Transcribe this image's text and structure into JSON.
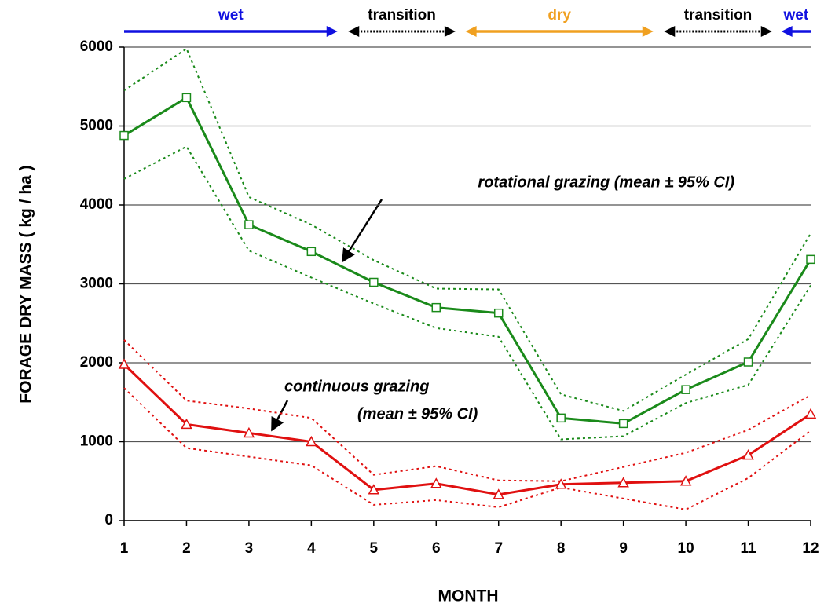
{
  "chart_data": {
    "type": "line",
    "xlabel": "MONTH",
    "ylabel": "FORAGE DRY MASS ( kg / ha )",
    "x": [
      1,
      2,
      3,
      4,
      5,
      6,
      7,
      8,
      9,
      10,
      11,
      12
    ],
    "xlim": [
      1,
      12
    ],
    "xticks": [
      1,
      2,
      3,
      4,
      5,
      6,
      7,
      8,
      9,
      10,
      11,
      12
    ],
    "ylim": [
      0,
      6000
    ],
    "yticks": [
      0,
      1000,
      2000,
      3000,
      4000,
      5000,
      6000
    ],
    "grid": true,
    "series": [
      {
        "color": "#1a8a1a",
        "marker": "square",
        "values": [
          4880,
          5360,
          3750,
          3410,
          3020,
          2700,
          2630,
          1300,
          1230,
          1660,
          2010,
          3310
        ],
        "upper": [
          5450,
          5980,
          4100,
          3750,
          3300,
          2940,
          2930,
          1600,
          1390,
          1850,
          2300,
          3640
        ],
        "lower": [
          4330,
          4740,
          3420,
          3080,
          2750,
          2440,
          2330,
          1030,
          1070,
          1490,
          1720,
          2980
        ]
      },
      {
        "color": "#e01010",
        "marker": "triangle",
        "values": [
          1980,
          1220,
          1110,
          1000,
          390,
          470,
          330,
          460,
          480,
          500,
          830,
          1350
        ],
        "upper": [
          2290,
          1520,
          1420,
          1300,
          580,
          690,
          510,
          500,
          680,
          860,
          1150,
          1590
        ],
        "lower": [
          1680,
          920,
          810,
          700,
          200,
          260,
          170,
          420,
          280,
          140,
          540,
          1140
        ]
      }
    ],
    "seasons": [
      {
        "label": "wet",
        "start": 1,
        "end": 4.42,
        "color": "#1010e0",
        "style": "solid",
        "heads": "end"
      },
      {
        "label": "transition",
        "start": 4.59,
        "end": 6.31,
        "color": "#000000",
        "style": "dotted",
        "heads": "both"
      },
      {
        "label": "dry",
        "start": 6.47,
        "end": 9.48,
        "color": "#f0a020",
        "style": "solid",
        "heads": "both"
      },
      {
        "label": "transition",
        "start": 9.65,
        "end": 11.38,
        "color": "#000000",
        "style": "dotted",
        "heads": "both"
      },
      {
        "label": "wet",
        "start": 11.53,
        "end": 12,
        "color": "#1010e0",
        "style": "solid",
        "heads": "start"
      }
    ],
    "annotations": [
      {
        "lines": [
          "rotational grazing (mean ± 95% CI)"
        ]
      },
      {
        "lines": [
          "continuous grazing",
          "(mean ± 95% CI)"
        ]
      }
    ]
  }
}
